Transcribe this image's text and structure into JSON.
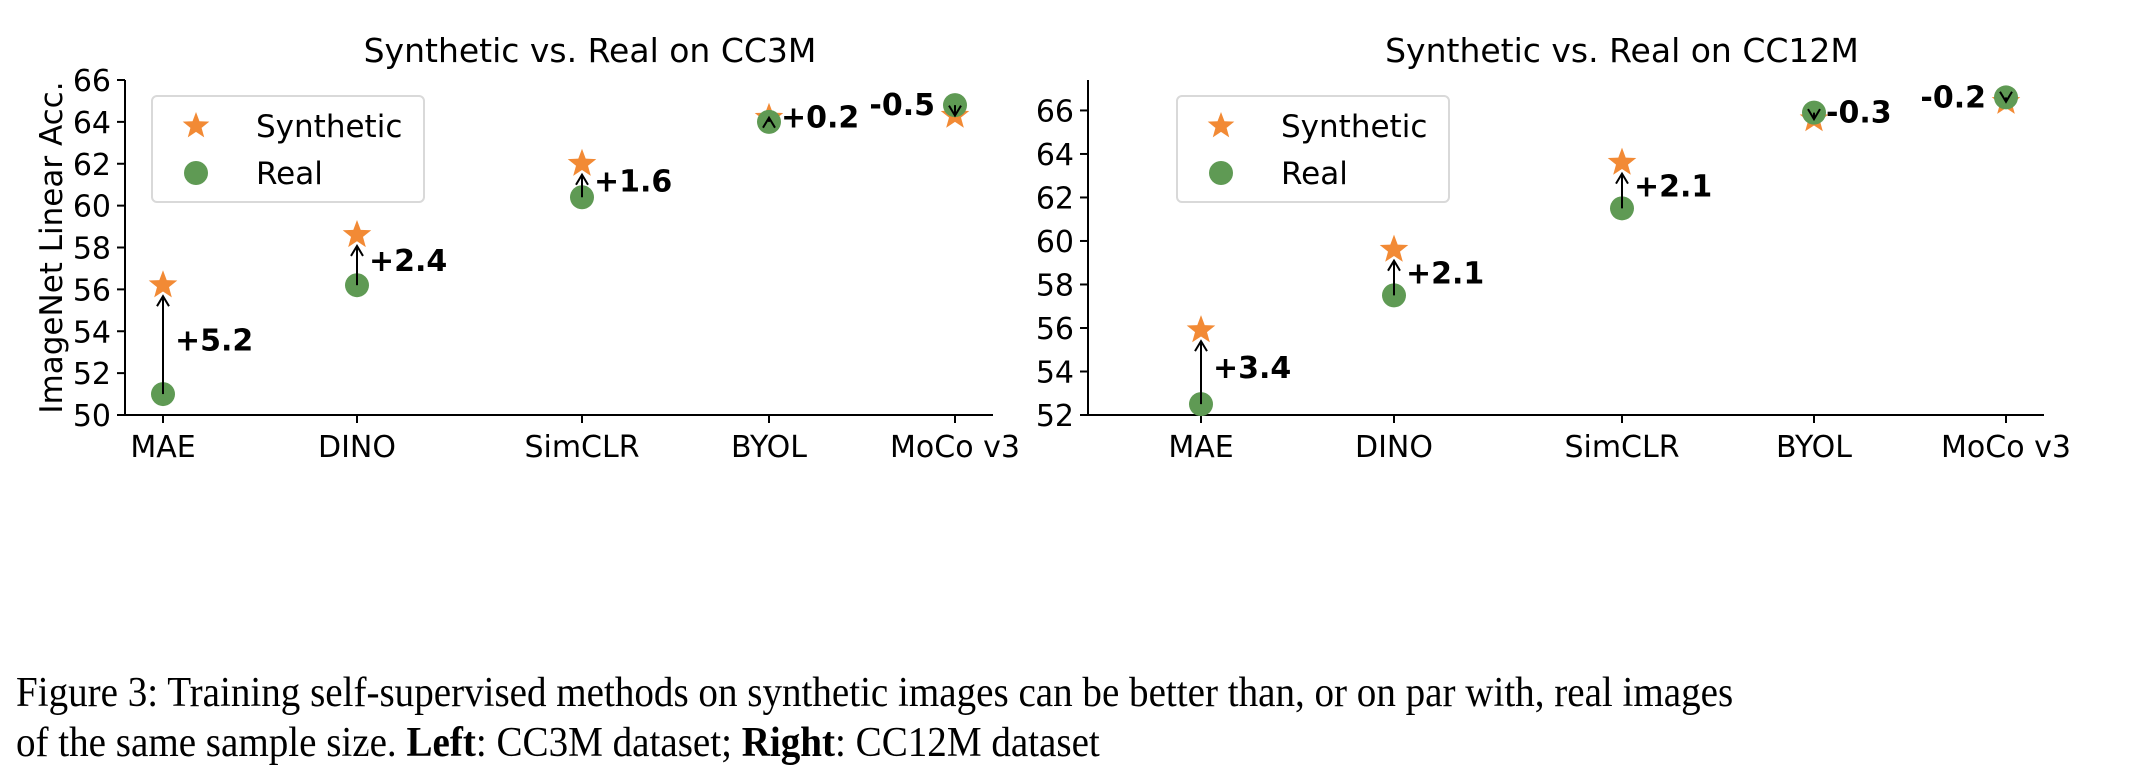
{
  "colors": {
    "synthetic": "#f28a35",
    "real": "#5f9a54",
    "axis": "#000000",
    "legend_border": "#d9d9d9"
  },
  "chart_data": [
    {
      "type": "scatter",
      "title": "Synthetic vs. Real on CC3M",
      "xlabel": "",
      "ylabel": "ImageNet Linear Acc.",
      "categories": [
        "MAE",
        "DINO",
        "SimCLR",
        "BYOL",
        "MoCo v3"
      ],
      "ylim": [
        50,
        66
      ],
      "yticks": [
        50,
        52,
        54,
        56,
        58,
        60,
        62,
        64,
        66
      ],
      "legend": {
        "placement": "top-left",
        "entries": [
          "Synthetic",
          "Real"
        ]
      },
      "series": [
        {
          "name": "Synthetic",
          "marker": "star",
          "values": [
            56.2,
            58.6,
            62.0,
            64.2,
            64.3
          ]
        },
        {
          "name": "Real",
          "marker": "circle",
          "values": [
            51.0,
            56.2,
            60.4,
            64.0,
            64.8
          ]
        }
      ],
      "annotations": [
        "+5.2",
        "+2.4",
        "+1.6",
        "+0.2",
        "-0.5"
      ],
      "grid": false
    },
    {
      "type": "scatter",
      "title": "Synthetic vs. Real on CC12M",
      "xlabel": "",
      "ylabel": "",
      "categories": [
        "MAE",
        "DINO",
        "SimCLR",
        "BYOL",
        "MoCo v3"
      ],
      "ylim": [
        52,
        67.4
      ],
      "yticks": [
        52,
        54,
        56,
        58,
        60,
        62,
        64,
        66
      ],
      "legend": {
        "placement": "top-left",
        "entries": [
          "Synthetic",
          "Real"
        ]
      },
      "series": [
        {
          "name": "Synthetic",
          "marker": "star",
          "values": [
            55.9,
            59.6,
            63.6,
            65.6,
            66.4
          ]
        },
        {
          "name": "Real",
          "marker": "circle",
          "values": [
            52.5,
            57.5,
            61.5,
            65.9,
            66.6
          ]
        }
      ],
      "annotations": [
        "+3.4",
        "+2.1",
        "+2.1",
        "-0.3",
        "-0.2"
      ],
      "grid": false
    }
  ],
  "caption": {
    "label": "Figure 3:",
    "text1": " Training self-supervised methods on synthetic images can be better than, or on par with, real images",
    "text2": "of the same sample size. ",
    "left_label": "Left",
    "left_text": ": CC3M dataset; ",
    "right_label": "Right",
    "right_text": ": CC12M dataset"
  }
}
